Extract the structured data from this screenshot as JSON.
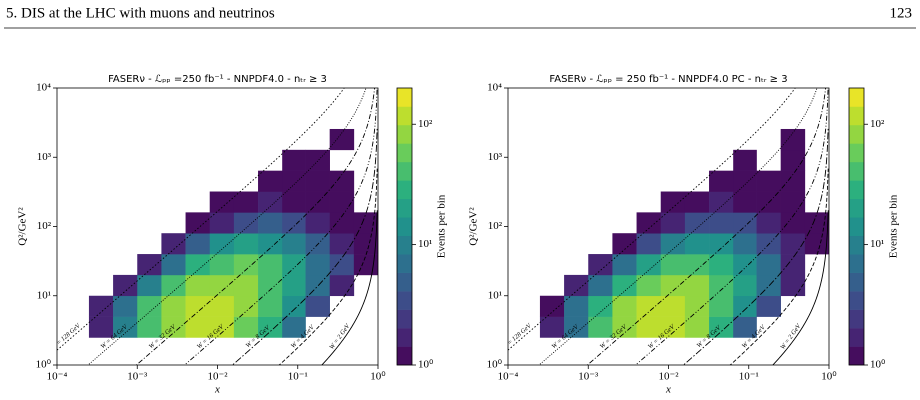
{
  "header": {
    "section": "5. DIS at the LHC with muons and neutrinos",
    "page": "123"
  },
  "chart_data": [
    {
      "type": "heatmap",
      "title": "FASERν - ℒₚₚ =250 fb⁻¹ - NNPDF4.0 - nₜᵣ ≥ 3",
      "x_label": "x",
      "y_label": "Q²/GeV²",
      "colorbar_label": "Events per bin",
      "colormap": "viridis",
      "log_x": true,
      "log_y": true,
      "x_edges": [
        0.00025,
        0.0005,
        0.001,
        0.002,
        0.004,
        0.008,
        0.016,
        0.032,
        0.064,
        0.125,
        0.25,
        0.5,
        1
      ],
      "y_edges": [
        2.5,
        5,
        10,
        20,
        40,
        80,
        160,
        320,
        640,
        1280,
        2560
      ],
      "values": [
        [
          2,
          10,
          40,
          90,
          130,
          110,
          60,
          25,
          6,
          null,
          null,
          null
        ],
        [
          2,
          8,
          35,
          90,
          120,
          120,
          80,
          40,
          15,
          4,
          null,
          null
        ],
        [
          null,
          2,
          10,
          35,
          70,
          90,
          80,
          45,
          20,
          8,
          2,
          null
        ],
        [
          null,
          null,
          2,
          8,
          25,
          45,
          50,
          35,
          18,
          8,
          3,
          1
        ],
        [
          null,
          null,
          null,
          2,
          5,
          12,
          18,
          15,
          10,
          5,
          2,
          1
        ],
        [
          null,
          null,
          null,
          null,
          1,
          2,
          4,
          5,
          4,
          2,
          1,
          1
        ],
        [
          null,
          null,
          null,
          null,
          null,
          1,
          1,
          2,
          1,
          1,
          1,
          null
        ],
        [
          null,
          null,
          null,
          null,
          null,
          null,
          null,
          1,
          1,
          1,
          1,
          null
        ],
        [
          null,
          null,
          null,
          null,
          null,
          null,
          null,
          null,
          1,
          1,
          null,
          null
        ],
        [
          null,
          null,
          null,
          null,
          null,
          null,
          null,
          null,
          null,
          null,
          1,
          null
        ]
      ],
      "xlim": [
        0.0001,
        1
      ],
      "ylim": [
        1,
        10000
      ],
      "clim": [
        1,
        200
      ],
      "xticks": [
        {
          "value": 0.0001,
          "label": "10⁻⁴"
        },
        {
          "value": 0.001,
          "label": "10⁻³"
        },
        {
          "value": 0.01,
          "label": "10⁻²"
        },
        {
          "value": 0.1,
          "label": "10⁻¹"
        },
        {
          "value": 1,
          "label": "10⁰"
        }
      ],
      "yticks": [
        {
          "value": 1,
          "label": "10⁰"
        },
        {
          "value": 10,
          "label": "10¹"
        },
        {
          "value": 100,
          "label": "10²"
        },
        {
          "value": 1000,
          "label": "10³"
        },
        {
          "value": 10000,
          "label": "10⁴"
        }
      ],
      "cticks": [
        {
          "value": 1,
          "label": "10⁰"
        },
        {
          "value": 10,
          "label": "10¹"
        },
        {
          "value": 100,
          "label": "10²"
        }
      ],
      "lines": [
        {
          "label": "W = 128 GeV",
          "W": 128
        },
        {
          "label": "W = 64 GeV",
          "W": 64
        },
        {
          "label": "W = 32 GeV",
          "W": 32
        },
        {
          "label": "W = 16 GeV",
          "W": 16
        },
        {
          "label": "W = 8 GeV",
          "W": 8
        },
        {
          "label": "W = 4 GeV",
          "W": 4
        },
        {
          "label": "W = 2 GeV",
          "W": 2
        }
      ]
    },
    {
      "type": "heatmap",
      "title": "FASERν - ℒₚₚ = 250 fb⁻¹ - NNPDF4.0 PC - nₜᵣ ≥ 3",
      "x_label": "x",
      "y_label": "Q²/GeV²",
      "colorbar_label": "Events per bin",
      "colormap": "viridis",
      "log_x": true,
      "log_y": true,
      "x_edges": [
        0.00025,
        0.0005,
        0.001,
        0.002,
        0.004,
        0.008,
        0.016,
        0.032,
        0.064,
        0.125,
        0.25,
        0.5,
        1
      ],
      "y_edges": [
        2.5,
        5,
        10,
        20,
        40,
        80,
        160,
        320,
        640,
        1280,
        2560
      ],
      "values": [
        [
          2,
          8,
          35,
          85,
          140,
          130,
          70,
          25,
          5,
          null,
          null,
          null
        ],
        [
          1,
          6,
          30,
          85,
          130,
          130,
          85,
          40,
          12,
          3,
          null,
          null
        ],
        [
          null,
          2,
          8,
          30,
          65,
          90,
          80,
          45,
          18,
          6,
          2,
          null
        ],
        [
          null,
          null,
          2,
          6,
          20,
          40,
          45,
          32,
          15,
          6,
          2,
          null
        ],
        [
          null,
          null,
          null,
          1,
          4,
          10,
          15,
          12,
          8,
          4,
          2,
          1
        ],
        [
          null,
          null,
          null,
          null,
          1,
          2,
          3,
          4,
          3,
          2,
          1,
          1
        ],
        [
          null,
          null,
          null,
          null,
          null,
          1,
          1,
          2,
          1,
          1,
          1,
          null
        ],
        [
          null,
          null,
          null,
          null,
          null,
          null,
          null,
          1,
          1,
          1,
          1,
          null
        ],
        [
          null,
          null,
          null,
          null,
          null,
          null,
          null,
          null,
          1,
          null,
          1,
          null
        ],
        [
          null,
          null,
          null,
          null,
          null,
          null,
          null,
          null,
          null,
          null,
          1,
          null
        ]
      ],
      "xlim": [
        0.0001,
        1
      ],
      "ylim": [
        1,
        10000
      ],
      "clim": [
        1,
        200
      ],
      "xticks": [
        {
          "value": 0.0001,
          "label": "10⁻⁴"
        },
        {
          "value": 0.001,
          "label": "10⁻³"
        },
        {
          "value": 0.01,
          "label": "10⁻²"
        },
        {
          "value": 0.1,
          "label": "10⁻¹"
        },
        {
          "value": 1,
          "label": "10⁰"
        }
      ],
      "yticks": [
        {
          "value": 1,
          "label": "10⁰"
        },
        {
          "value": 10,
          "label": "10¹"
        },
        {
          "value": 100,
          "label": "10²"
        },
        {
          "value": 1000,
          "label": "10³"
        },
        {
          "value": 10000,
          "label": "10⁴"
        }
      ],
      "cticks": [
        {
          "value": 1,
          "label": "10⁰"
        },
        {
          "value": 10,
          "label": "10¹"
        },
        {
          "value": 100,
          "label": "10²"
        }
      ],
      "lines": [
        {
          "label": "W = 128 GeV",
          "W": 128
        },
        {
          "label": "W = 64 GeV",
          "W": 64
        },
        {
          "label": "W = 32 GeV",
          "W": 32
        },
        {
          "label": "W = 16 GeV",
          "W": 16
        },
        {
          "label": "W = 8 GeV",
          "W": 8
        },
        {
          "label": "W = 4 GeV",
          "W": 4
        },
        {
          "label": "W = 2 GeV",
          "W": 2
        }
      ]
    }
  ]
}
